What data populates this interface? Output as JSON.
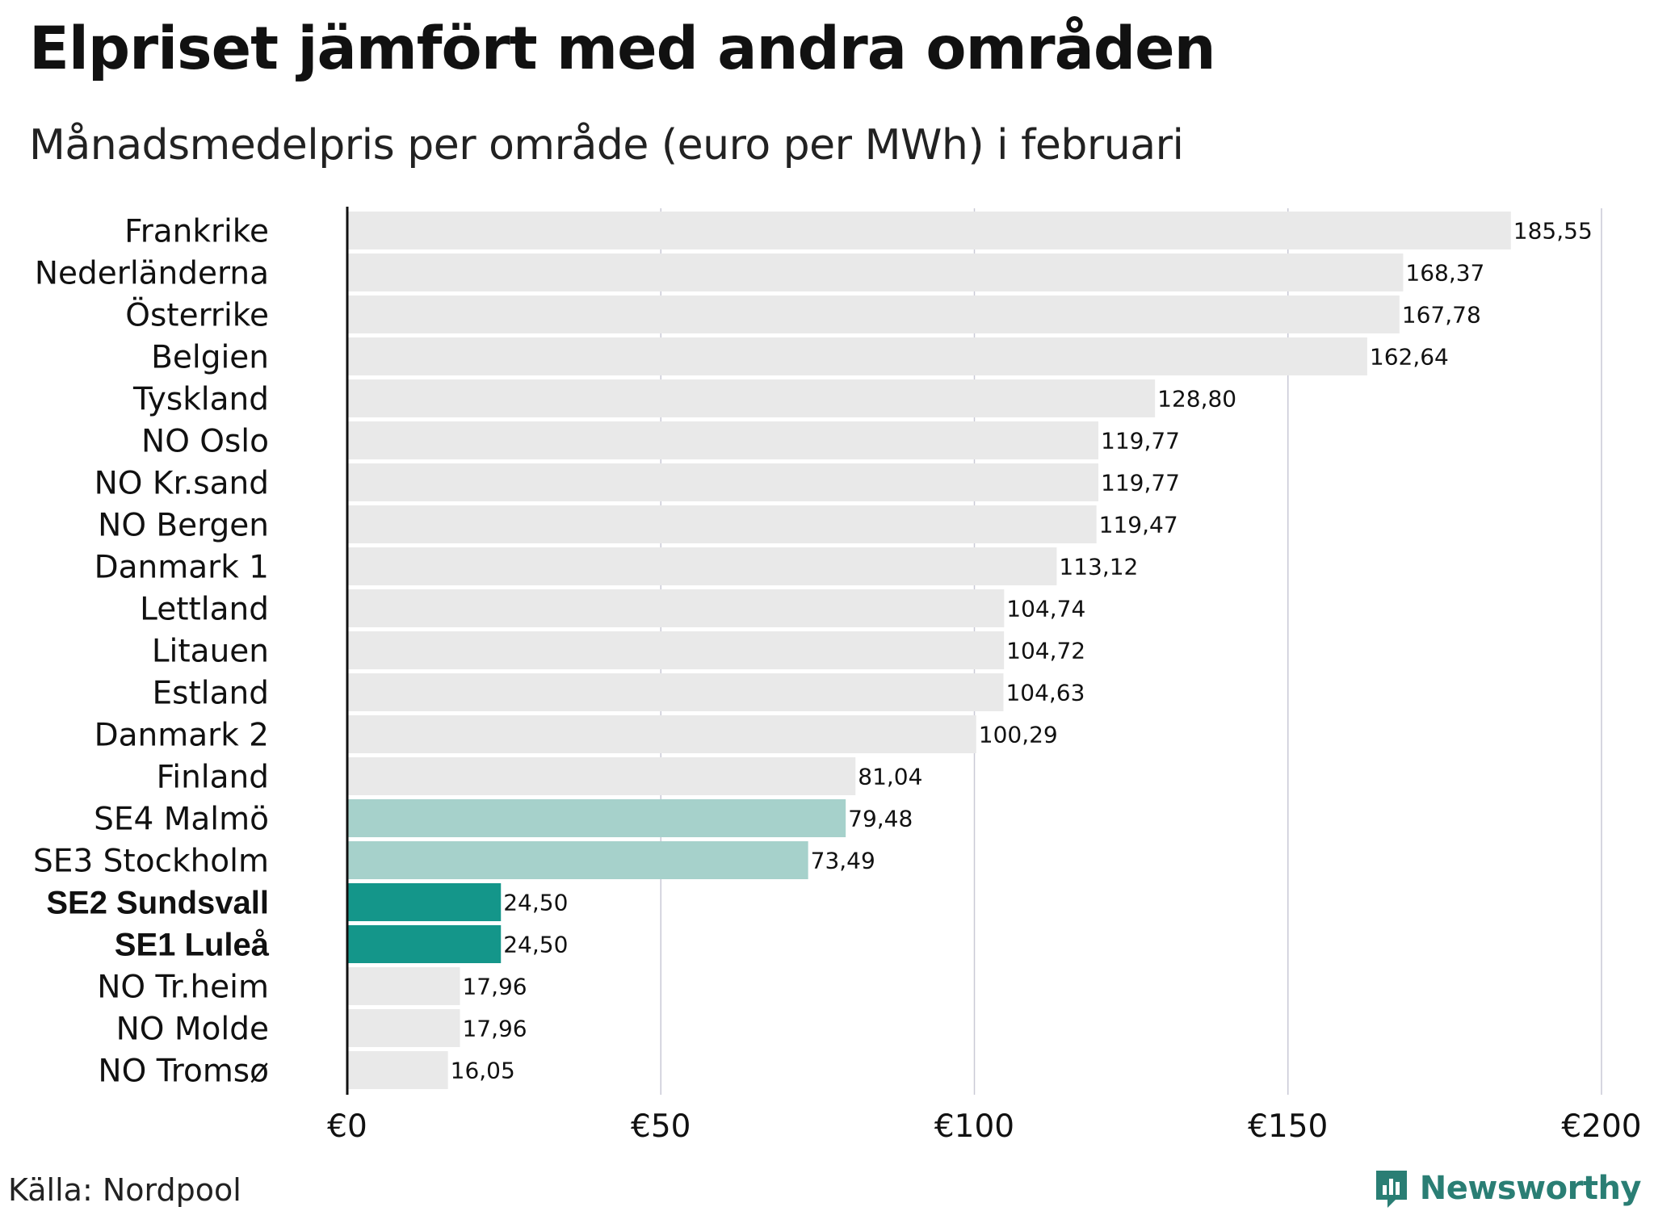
{
  "header": {
    "title": "Elpriset jämfört med andra områden",
    "subtitle": "Månadsmedelpris per område (euro per MWh) i februari"
  },
  "footer": {
    "source": "Källa: Nordpool",
    "brand": "Newsworthy"
  },
  "colors": {
    "default_bar": "#e9e9e9",
    "highlight_light": "#a6d1cb",
    "highlight_dark": "#14968a",
    "gridline": "#c9c9d6",
    "axis": "#111111",
    "brand": "#2a7e74"
  },
  "chart_data": {
    "type": "bar",
    "orientation": "horizontal",
    "title": "Elpriset jämfört med andra områden",
    "subtitle": "Månadsmedelpris per område (euro per MWh) i februari",
    "xlabel": "",
    "ylabel": "",
    "xlim": [
      0,
      200
    ],
    "ticks": [
      0,
      50,
      100,
      150,
      200
    ],
    "tick_labels": [
      "€0",
      "€50",
      "€100",
      "€150",
      "€200"
    ],
    "grid": true,
    "categories": [
      "Frankrike",
      "Nederländerna",
      "Österrike",
      "Belgien",
      "Tyskland",
      "NO Oslo",
      "NO Kr.sand",
      "NO Bergen",
      "Danmark 1",
      "Lettland",
      "Litauen",
      "Estland",
      "Danmark 2",
      "Finland",
      "SE4 Malmö",
      "SE3 Stockholm",
      "SE2 Sundsvall",
      "SE1 Luleå",
      "NO Tr.heim",
      "NO Molde",
      "NO Tromsø"
    ],
    "values": [
      185.55,
      168.37,
      167.78,
      162.64,
      128.8,
      119.77,
      119.77,
      119.47,
      113.12,
      104.74,
      104.72,
      104.63,
      100.29,
      81.04,
      79.48,
      73.49,
      24.5,
      24.5,
      17.96,
      17.96,
      16.05
    ],
    "value_labels": [
      "185,55",
      "168,37",
      "167,78",
      "162,64",
      "128,80",
      "119,77",
      "119,77",
      "119,47",
      "113,12",
      "104,74",
      "104,72",
      "104,63",
      "100,29",
      "81,04",
      "79,48",
      "73,49",
      "24,50",
      "24,50",
      "17,96",
      "17,96",
      "16,05"
    ],
    "highlight": [
      "none",
      "none",
      "none",
      "none",
      "none",
      "none",
      "none",
      "none",
      "none",
      "none",
      "none",
      "none",
      "none",
      "none",
      "light",
      "light",
      "dark",
      "dark",
      "none",
      "none",
      "none"
    ]
  }
}
